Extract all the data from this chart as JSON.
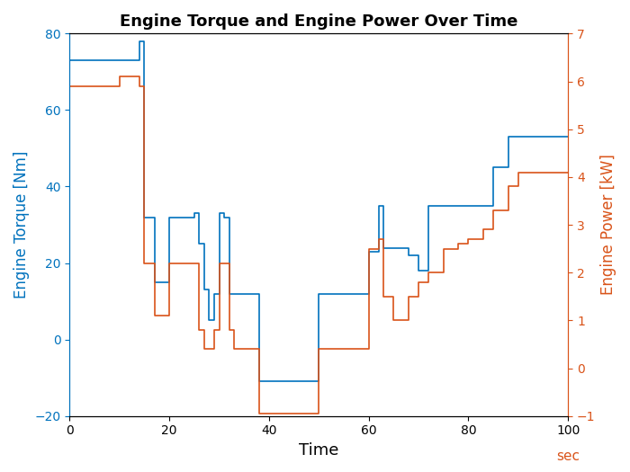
{
  "title": "Engine Torque and Engine Power Over Time",
  "xlabel": "Time",
  "ylabel_left": "Engine Torque [Nm]",
  "ylabel_right": "Engine Power [kW]",
  "xlabel_unit": "sec",
  "xlim": [
    0,
    100
  ],
  "ylim_left": [
    -20,
    80
  ],
  "ylim_right": [
    -1,
    7
  ],
  "left_color": "#0072BD",
  "right_color": "#D95319",
  "torque_x": [
    0,
    0,
    1,
    1,
    3,
    3,
    5,
    5,
    10,
    10,
    14,
    14,
    15,
    15,
    16,
    16,
    17,
    17,
    20,
    20,
    22,
    22,
    25,
    25,
    26,
    26,
    27,
    27,
    28,
    28,
    29,
    29,
    30,
    30,
    31,
    31,
    32,
    32,
    33,
    33,
    35,
    35,
    38,
    38,
    40,
    40,
    50,
    50,
    55,
    55,
    60,
    60,
    62,
    62,
    63,
    63,
    65,
    65,
    68,
    68,
    70,
    70,
    72,
    72,
    75,
    75,
    78,
    78,
    80,
    80,
    83,
    83,
    85,
    85,
    88,
    88,
    90,
    90,
    92,
    92,
    95,
    95,
    100
  ],
  "torque_y": [
    65,
    73,
    73,
    73,
    73,
    73,
    73,
    73,
    73,
    73,
    73,
    78,
    78,
    32,
    32,
    32,
    32,
    15,
    15,
    32,
    32,
    32,
    32,
    33,
    33,
    25,
    25,
    13,
    13,
    5,
    5,
    12,
    12,
    33,
    33,
    32,
    32,
    12,
    12,
    12,
    12,
    12,
    12,
    -11,
    -11,
    -11,
    -11,
    12,
    12,
    12,
    12,
    23,
    23,
    35,
    35,
    24,
    24,
    24,
    24,
    22,
    22,
    18,
    18,
    35,
    35,
    35,
    35,
    35,
    35,
    35,
    35,
    35,
    35,
    45,
    45,
    53,
    53,
    53,
    53,
    53,
    53,
    53,
    53
  ],
  "power_x": [
    0,
    0,
    1,
    1,
    3,
    3,
    10,
    10,
    14,
    14,
    15,
    15,
    16,
    16,
    17,
    17,
    20,
    20,
    22,
    22,
    25,
    25,
    26,
    26,
    27,
    27,
    28,
    28,
    29,
    29,
    30,
    30,
    32,
    32,
    33,
    33,
    38,
    38,
    40,
    40,
    50,
    50,
    55,
    55,
    60,
    60,
    62,
    62,
    63,
    63,
    65,
    65,
    68,
    68,
    70,
    70,
    72,
    72,
    75,
    75,
    78,
    78,
    80,
    80,
    83,
    83,
    85,
    85,
    88,
    88,
    90,
    90,
    95,
    95,
    100
  ],
  "power_y": [
    -0.05,
    5.9,
    5.9,
    5.9,
    5.9,
    5.9,
    5.9,
    6.1,
    6.1,
    5.9,
    5.9,
    2.2,
    2.2,
    2.2,
    2.2,
    1.1,
    1.1,
    2.2,
    2.2,
    2.2,
    2.2,
    2.2,
    2.2,
    0.8,
    0.8,
    0.4,
    0.4,
    0.4,
    0.4,
    0.8,
    0.8,
    2.2,
    2.2,
    0.8,
    0.8,
    0.4,
    0.4,
    -0.95,
    -0.95,
    -0.95,
    -0.95,
    0.4,
    0.4,
    0.4,
    0.4,
    2.5,
    2.5,
    2.7,
    2.7,
    1.5,
    1.5,
    1.0,
    1.0,
    1.5,
    1.5,
    1.8,
    1.8,
    2.0,
    2.0,
    2.5,
    2.5,
    2.6,
    2.6,
    2.7,
    2.7,
    2.9,
    2.9,
    3.3,
    3.3,
    3.8,
    3.8,
    4.1,
    4.1,
    4.1,
    4.1
  ]
}
